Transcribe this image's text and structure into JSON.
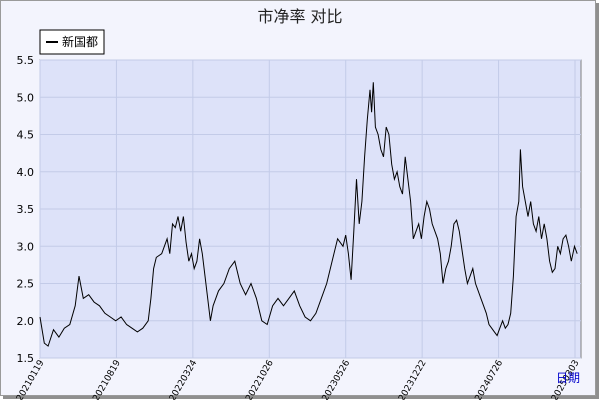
{
  "chart_data": {
    "type": "line",
    "title": "市净率  对比",
    "xlabel": "日期",
    "ylabel": "",
    "ylim": [
      1.5,
      5.5
    ],
    "yticks": [
      "1.5",
      "2.0",
      "2.5",
      "3.0",
      "3.5",
      "4.0",
      "4.5",
      "5.0",
      "5.5"
    ],
    "xticks": [
      "20210119",
      "20210819",
      "20220324",
      "20221026",
      "20230526",
      "20231222",
      "20240726",
      "20250303"
    ],
    "grid": true,
    "legend_position": "top-left",
    "colors": {
      "line": "#000000",
      "plot_bg": "#dde2f9",
      "grid": "#c3cbe8"
    },
    "series": [
      {
        "name": "新国都",
        "points": [
          [
            0,
            2.05
          ],
          [
            0.008,
            1.7
          ],
          [
            0.015,
            1.66
          ],
          [
            0.025,
            1.88
          ],
          [
            0.035,
            1.78
          ],
          [
            0.045,
            1.9
          ],
          [
            0.055,
            1.95
          ],
          [
            0.065,
            2.2
          ],
          [
            0.072,
            2.6
          ],
          [
            0.08,
            2.3
          ],
          [
            0.09,
            2.35
          ],
          [
            0.1,
            2.25
          ],
          [
            0.11,
            2.2
          ],
          [
            0.12,
            2.1
          ],
          [
            0.13,
            2.05
          ],
          [
            0.14,
            2.0
          ],
          [
            0.15,
            2.05
          ],
          [
            0.16,
            1.95
          ],
          [
            0.17,
            1.9
          ],
          [
            0.18,
            1.85
          ],
          [
            0.19,
            1.9
          ],
          [
            0.2,
            2.0
          ],
          [
            0.205,
            2.3
          ],
          [
            0.21,
            2.7
          ],
          [
            0.215,
            2.85
          ],
          [
            0.225,
            2.9
          ],
          [
            0.235,
            3.1
          ],
          [
            0.24,
            2.9
          ],
          [
            0.245,
            3.3
          ],
          [
            0.25,
            3.25
          ],
          [
            0.255,
            3.4
          ],
          [
            0.26,
            3.2
          ],
          [
            0.265,
            3.4
          ],
          [
            0.27,
            3.05
          ],
          [
            0.275,
            2.8
          ],
          [
            0.28,
            2.9
          ],
          [
            0.285,
            2.7
          ],
          [
            0.29,
            2.8
          ],
          [
            0.295,
            3.1
          ],
          [
            0.3,
            2.9
          ],
          [
            0.305,
            2.6
          ],
          [
            0.31,
            2.3
          ],
          [
            0.315,
            2.0
          ],
          [
            0.32,
            2.2
          ],
          [
            0.33,
            2.4
          ],
          [
            0.34,
            2.5
          ],
          [
            0.35,
            2.7
          ],
          [
            0.36,
            2.8
          ],
          [
            0.37,
            2.5
          ],
          [
            0.38,
            2.35
          ],
          [
            0.39,
            2.5
          ],
          [
            0.4,
            2.3
          ],
          [
            0.41,
            2.0
          ],
          [
            0.42,
            1.95
          ],
          [
            0.43,
            2.2
          ],
          [
            0.44,
            2.3
          ],
          [
            0.45,
            2.2
          ],
          [
            0.46,
            2.3
          ],
          [
            0.47,
            2.4
          ],
          [
            0.48,
            2.2
          ],
          [
            0.49,
            2.05
          ],
          [
            0.5,
            2.0
          ],
          [
            0.51,
            2.1
          ],
          [
            0.52,
            2.3
          ],
          [
            0.53,
            2.5
          ],
          [
            0.54,
            2.8
          ],
          [
            0.55,
            3.1
          ],
          [
            0.56,
            3.0
          ],
          [
            0.565,
            3.15
          ],
          [
            0.57,
            2.9
          ],
          [
            0.575,
            2.55
          ],
          [
            0.58,
            3.2
          ],
          [
            0.585,
            3.9
          ],
          [
            0.59,
            3.3
          ],
          [
            0.595,
            3.6
          ],
          [
            0.6,
            4.2
          ],
          [
            0.605,
            4.7
          ],
          [
            0.61,
            5.1
          ],
          [
            0.613,
            4.8
          ],
          [
            0.616,
            5.2
          ],
          [
            0.62,
            4.6
          ],
          [
            0.625,
            4.5
          ],
          [
            0.63,
            4.3
          ],
          [
            0.635,
            4.2
          ],
          [
            0.64,
            4.6
          ],
          [
            0.645,
            4.5
          ],
          [
            0.65,
            4.1
          ],
          [
            0.655,
            3.9
          ],
          [
            0.66,
            4.0
          ],
          [
            0.665,
            3.8
          ],
          [
            0.67,
            3.7
          ],
          [
            0.675,
            4.2
          ],
          [
            0.68,
            3.9
          ],
          [
            0.685,
            3.6
          ],
          [
            0.69,
            3.1
          ],
          [
            0.695,
            3.2
          ],
          [
            0.7,
            3.3
          ],
          [
            0.705,
            3.1
          ],
          [
            0.71,
            3.4
          ],
          [
            0.715,
            3.6
          ],
          [
            0.72,
            3.5
          ],
          [
            0.725,
            3.3
          ],
          [
            0.73,
            3.2
          ],
          [
            0.735,
            3.1
          ],
          [
            0.74,
            2.9
          ],
          [
            0.745,
            2.5
          ],
          [
            0.75,
            2.7
          ],
          [
            0.755,
            2.8
          ],
          [
            0.76,
            3.0
          ],
          [
            0.765,
            3.3
          ],
          [
            0.77,
            3.35
          ],
          [
            0.775,
            3.2
          ],
          [
            0.78,
            2.95
          ],
          [
            0.785,
            2.7
          ],
          [
            0.79,
            2.5
          ],
          [
            0.795,
            2.6
          ],
          [
            0.8,
            2.7
          ],
          [
            0.805,
            2.5
          ],
          [
            0.81,
            2.4
          ],
          [
            0.815,
            2.3
          ],
          [
            0.82,
            2.2
          ],
          [
            0.825,
            2.1
          ],
          [
            0.83,
            1.95
          ],
          [
            0.835,
            1.9
          ],
          [
            0.84,
            1.85
          ],
          [
            0.845,
            1.8
          ],
          [
            0.85,
            1.9
          ],
          [
            0.855,
            2.0
          ],
          [
            0.86,
            1.9
          ],
          [
            0.865,
            1.95
          ],
          [
            0.87,
            2.1
          ],
          [
            0.875,
            2.6
          ],
          [
            0.88,
            3.4
          ],
          [
            0.885,
            3.6
          ],
          [
            0.888,
            4.3
          ],
          [
            0.892,
            3.8
          ],
          [
            0.897,
            3.6
          ],
          [
            0.902,
            3.4
          ],
          [
            0.907,
            3.6
          ],
          [
            0.912,
            3.3
          ],
          [
            0.917,
            3.2
          ],
          [
            0.922,
            3.4
          ],
          [
            0.927,
            3.1
          ],
          [
            0.932,
            3.3
          ],
          [
            0.937,
            3.1
          ],
          [
            0.942,
            2.8
          ],
          [
            0.947,
            2.65
          ],
          [
            0.952,
            2.7
          ],
          [
            0.957,
            3.0
          ],
          [
            0.962,
            2.9
          ],
          [
            0.967,
            3.1
          ],
          [
            0.972,
            3.15
          ],
          [
            0.977,
            3.0
          ],
          [
            0.982,
            2.8
          ],
          [
            0.988,
            3.0
          ],
          [
            0.993,
            2.9
          ]
        ]
      }
    ]
  }
}
